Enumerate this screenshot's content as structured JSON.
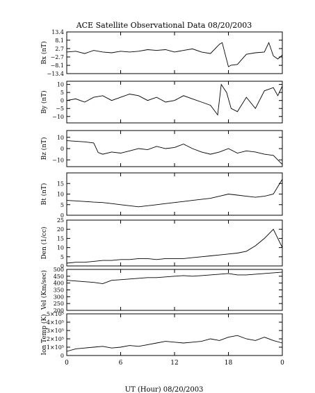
{
  "title": "ACE Satellite Observational Data   08/20/2003",
  "xlabel": "UT (Hour)   08/20/2003",
  "xticks": [
    "0",
    "6",
    "12",
    "18",
    "0"
  ],
  "chart_data": [
    {
      "type": "line",
      "ylabel": "Bx (nT)",
      "ylim": [
        -13.4,
        13.4
      ],
      "yticks": [
        13.4,
        8.1,
        2.7,
        -2.7,
        -8.1,
        -13.4
      ],
      "ytick_labels": [
        "13.4",
        "8.1",
        "2.7",
        "−2.7",
        "−8.1",
        "−13.4"
      ],
      "x": [
        0,
        1,
        2,
        3,
        4,
        5,
        6,
        7,
        8,
        9,
        10,
        11,
        12,
        13,
        14,
        15,
        16,
        17,
        17.3,
        18,
        18.3,
        19,
        20,
        21,
        22,
        22.5,
        23,
        23.5,
        24
      ],
      "y": [
        0.5,
        1.0,
        -0.5,
        1.5,
        0.5,
        0.0,
        1.0,
        0.5,
        1.0,
        2.0,
        1.5,
        2.0,
        0.5,
        1.5,
        2.5,
        0.5,
        -0.5,
        5.5,
        6.5,
        -9.0,
        -8.0,
        -7.5,
        -1.0,
        0.0,
        0.5,
        6.5,
        -2.0,
        -4.0,
        -1.5
      ]
    },
    {
      "type": "line",
      "ylabel": "By (nT)",
      "ylim": [
        -14,
        12
      ],
      "yticks": [
        10,
        5,
        0,
        -5,
        -10
      ],
      "ytick_labels": [
        "10",
        "5",
        "0",
        "−5",
        "−10"
      ],
      "x": [
        0,
        1,
        2,
        3,
        4,
        5,
        6,
        7,
        8,
        9,
        10,
        11,
        12,
        13,
        14,
        15,
        16,
        16.8,
        17.2,
        17.8,
        18.3,
        19,
        20,
        21,
        22,
        23,
        23.5,
        24
      ],
      "y": [
        0,
        1,
        -1,
        2,
        3,
        0,
        2,
        4,
        3,
        0,
        2,
        -1,
        0,
        3,
        1,
        -1,
        -3,
        -9,
        10,
        5,
        -5,
        -7,
        2,
        -5,
        6,
        8,
        3,
        9
      ]
    },
    {
      "type": "line",
      "ylabel": "Bz (nT)",
      "ylim": [
        -16,
        16
      ],
      "yticks": [
        10,
        0,
        -10
      ],
      "ytick_labels": [
        "10",
        "0",
        "−10"
      ],
      "x": [
        0,
        1,
        2,
        3,
        3.5,
        4,
        5,
        6,
        7,
        8,
        9,
        10,
        11,
        12,
        13,
        14,
        15,
        16,
        17,
        18,
        19,
        20,
        21,
        22,
        23,
        24
      ],
      "y": [
        7,
        6.5,
        6,
        5,
        -3.5,
        -5,
        -3,
        -4,
        -2,
        0,
        -1,
        2,
        0,
        1,
        4,
        0,
        -3,
        -5,
        -3,
        0,
        -4,
        -2,
        -3,
        -5,
        -6,
        -14
      ]
    },
    {
      "type": "line",
      "ylabel": "Bt (nT)",
      "ylim": [
        0,
        20
      ],
      "yticks": [
        15,
        10,
        5,
        0
      ],
      "ytick_labels": [
        "15",
        "10",
        "5",
        "0"
      ],
      "x": [
        0,
        1,
        2,
        3,
        4,
        5,
        6,
        7,
        8,
        9,
        10,
        11,
        12,
        13,
        14,
        15,
        16,
        17,
        18,
        19,
        20,
        21,
        22,
        23,
        24
      ],
      "y": [
        7,
        6.8,
        6.5,
        6.2,
        6,
        5.5,
        5,
        4.5,
        4,
        4.5,
        5,
        5.5,
        6,
        6.5,
        7,
        7.5,
        8,
        9,
        10,
        9.5,
        9,
        8.5,
        9,
        10,
        17
      ]
    },
    {
      "type": "line",
      "ylabel": "Den (1/cc)",
      "ylim": [
        0,
        25
      ],
      "yticks": [
        25,
        20,
        15,
        10,
        5,
        0
      ],
      "ytick_labels": [
        "25",
        "20",
        "15",
        "10",
        "5",
        "0"
      ],
      "x": [
        0,
        1,
        2,
        3,
        4,
        5,
        6,
        7,
        8,
        9,
        10,
        11,
        12,
        13,
        14,
        15,
        16,
        17,
        18,
        19,
        20,
        21,
        22,
        23,
        24
      ],
      "y": [
        1.5,
        2,
        2,
        2.5,
        3,
        3,
        3.5,
        3.5,
        4,
        4,
        3.5,
        4,
        4,
        4,
        4.5,
        5,
        5.5,
        6,
        6.5,
        7,
        8,
        11,
        15,
        20,
        10
      ]
    },
    {
      "type": "line",
      "ylabel": "Vel (Km/sec)",
      "ylim": [
        200,
        500
      ],
      "yticks": [
        500,
        450,
        400,
        350,
        300,
        250,
        200
      ],
      "ytick_labels": [
        "500",
        "450",
        "400",
        "350",
        "300",
        "250",
        "200"
      ],
      "x": [
        0,
        1,
        2,
        3,
        4,
        5,
        6,
        7,
        8,
        9,
        10,
        11,
        12,
        13,
        14,
        15,
        16,
        17,
        18,
        19,
        20,
        21,
        22,
        23,
        24
      ],
      "y": [
        420,
        415,
        410,
        405,
        395,
        420,
        425,
        430,
        435,
        440,
        440,
        445,
        450,
        455,
        450,
        455,
        460,
        465,
        470,
        460,
        460,
        465,
        470,
        475,
        480
      ]
    },
    {
      "type": "line",
      "ylabel": "Ion Temp (K)",
      "ylim": [
        0,
        500000
      ],
      "yticks": [
        500000,
        400000,
        300000,
        200000,
        100000,
        0
      ],
      "ytick_labels": [
        "5×10⁵",
        "4×10⁵",
        "3×10⁵",
        "2×10⁵",
        "1×10⁵",
        "0"
      ],
      "x": [
        0,
        1,
        2,
        3,
        4,
        5,
        6,
        7,
        8,
        9,
        10,
        11,
        12,
        13,
        14,
        15,
        16,
        17,
        18,
        19,
        20,
        21,
        22,
        23,
        24
      ],
      "y": [
        50000,
        80000,
        90000,
        100000,
        110000,
        90000,
        100000,
        120000,
        110000,
        130000,
        150000,
        170000,
        160000,
        150000,
        160000,
        170000,
        200000,
        180000,
        220000,
        240000,
        200000,
        180000,
        220000,
        180000,
        150000
      ]
    }
  ]
}
